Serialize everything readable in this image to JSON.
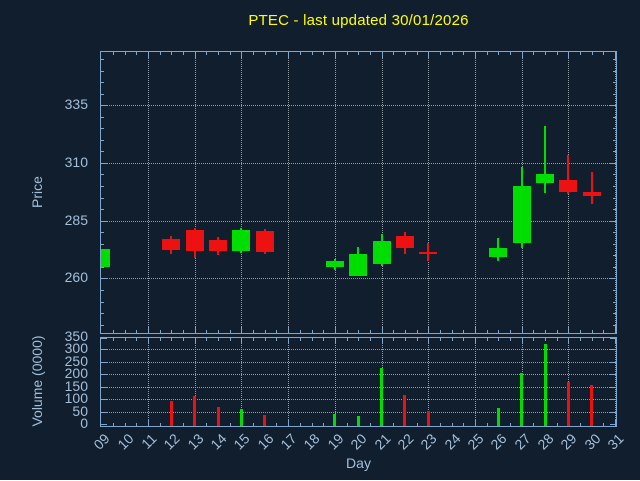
{
  "title": {
    "text": "PTEC - last updated 30/01/2026",
    "color": "#ffff00"
  },
  "axes": {
    "price": {
      "label": "Price",
      "ticks": [
        260,
        285,
        310,
        335
      ]
    },
    "volume": {
      "label": "Volume (0000)",
      "ticks": [
        0,
        50,
        100,
        150,
        200,
        250,
        300,
        350
      ]
    },
    "x": {
      "label": "Day",
      "day_labels": [
        "09",
        "10",
        "11",
        "12",
        "13",
        "14",
        "15",
        "16",
        "17",
        "18",
        "19",
        "20",
        "21",
        "22",
        "23",
        "24",
        "25",
        "26",
        "27",
        "28",
        "29",
        "30",
        "31"
      ],
      "first_day": 9,
      "last_day": 31,
      "gridline_days": [
        11,
        13,
        15,
        17,
        19,
        21,
        23,
        25,
        27,
        29,
        31
      ]
    }
  },
  "colors": {
    "background": "#101e2e",
    "axis": "#7fa6cc",
    "tick_text": "#a3bfda",
    "grid": "#aab4bd",
    "title": "#ffff00",
    "up": "#00dd00",
    "down": "#ee1111"
  },
  "chart_data": {
    "type": "candlestick_with_volume",
    "title": "PTEC - last updated 30/01/2026",
    "xlabel": "Day",
    "price_axis": {
      "label": "Price",
      "tick_values": [
        260,
        285,
        310,
        335
      ],
      "approx_range": [
        235.5,
        358.0
      ]
    },
    "volume_axis": {
      "label": "Volume (0000)",
      "tick_values": [
        0,
        50,
        100,
        150,
        200,
        250,
        300,
        350
      ],
      "approx_range": [
        0,
        365
      ]
    },
    "grid": true,
    "candles": [
      {
        "day": 9,
        "open": 264.8,
        "high": 272.8,
        "low": 264.8,
        "close": 272.8,
        "volume": 0
      },
      {
        "day": 12,
        "open": 277.0,
        "high": 278.5,
        "low": 270.7,
        "close": 272.4,
        "volume": 92
      },
      {
        "day": 13,
        "open": 280.8,
        "high": 281.8,
        "low": 268.8,
        "close": 271.7,
        "volume": 112
      },
      {
        "day": 14,
        "open": 276.5,
        "high": 277.9,
        "low": 270.3,
        "close": 271.7,
        "volume": 69
      },
      {
        "day": 15,
        "open": 272.0,
        "high": 281.8,
        "low": 270.8,
        "close": 281.1,
        "volume": 61
      },
      {
        "day": 16,
        "open": 280.4,
        "high": 281.4,
        "low": 270.4,
        "close": 271.3,
        "volume": 38
      },
      {
        "day": 19,
        "open": 264.8,
        "high": 268.5,
        "low": 263.8,
        "close": 267.4,
        "volume": 42
      },
      {
        "day": 20,
        "open": 260.9,
        "high": 273.4,
        "low": 260.9,
        "close": 270.5,
        "volume": 33
      },
      {
        "day": 21,
        "open": 266.2,
        "high": 279.2,
        "low": 265.2,
        "close": 276.3,
        "volume": 227
      },
      {
        "day": 22,
        "open": 278.2,
        "high": 279.9,
        "low": 270.5,
        "close": 273.1,
        "volume": 117
      },
      {
        "day": 23,
        "open": 271.3,
        "high": 275.3,
        "low": 267.7,
        "close": 270.6,
        "volume": 52
      },
      {
        "day": 26,
        "open": 269.2,
        "high": 277.3,
        "low": 267.7,
        "close": 273.2,
        "volume": 65
      },
      {
        "day": 27,
        "open": 275.2,
        "high": 308.1,
        "low": 273.0,
        "close": 299.9,
        "volume": 207
      },
      {
        "day": 28,
        "open": 301.2,
        "high": 325.9,
        "low": 296.8,
        "close": 305.1,
        "volume": 322
      },
      {
        "day": 29,
        "open": 302.5,
        "high": 313.3,
        "low": 296.4,
        "close": 297.3,
        "volume": 167
      },
      {
        "day": 30,
        "open": 297.3,
        "high": 305.9,
        "low": 292.1,
        "close": 295.5,
        "volume": 156
      }
    ]
  }
}
